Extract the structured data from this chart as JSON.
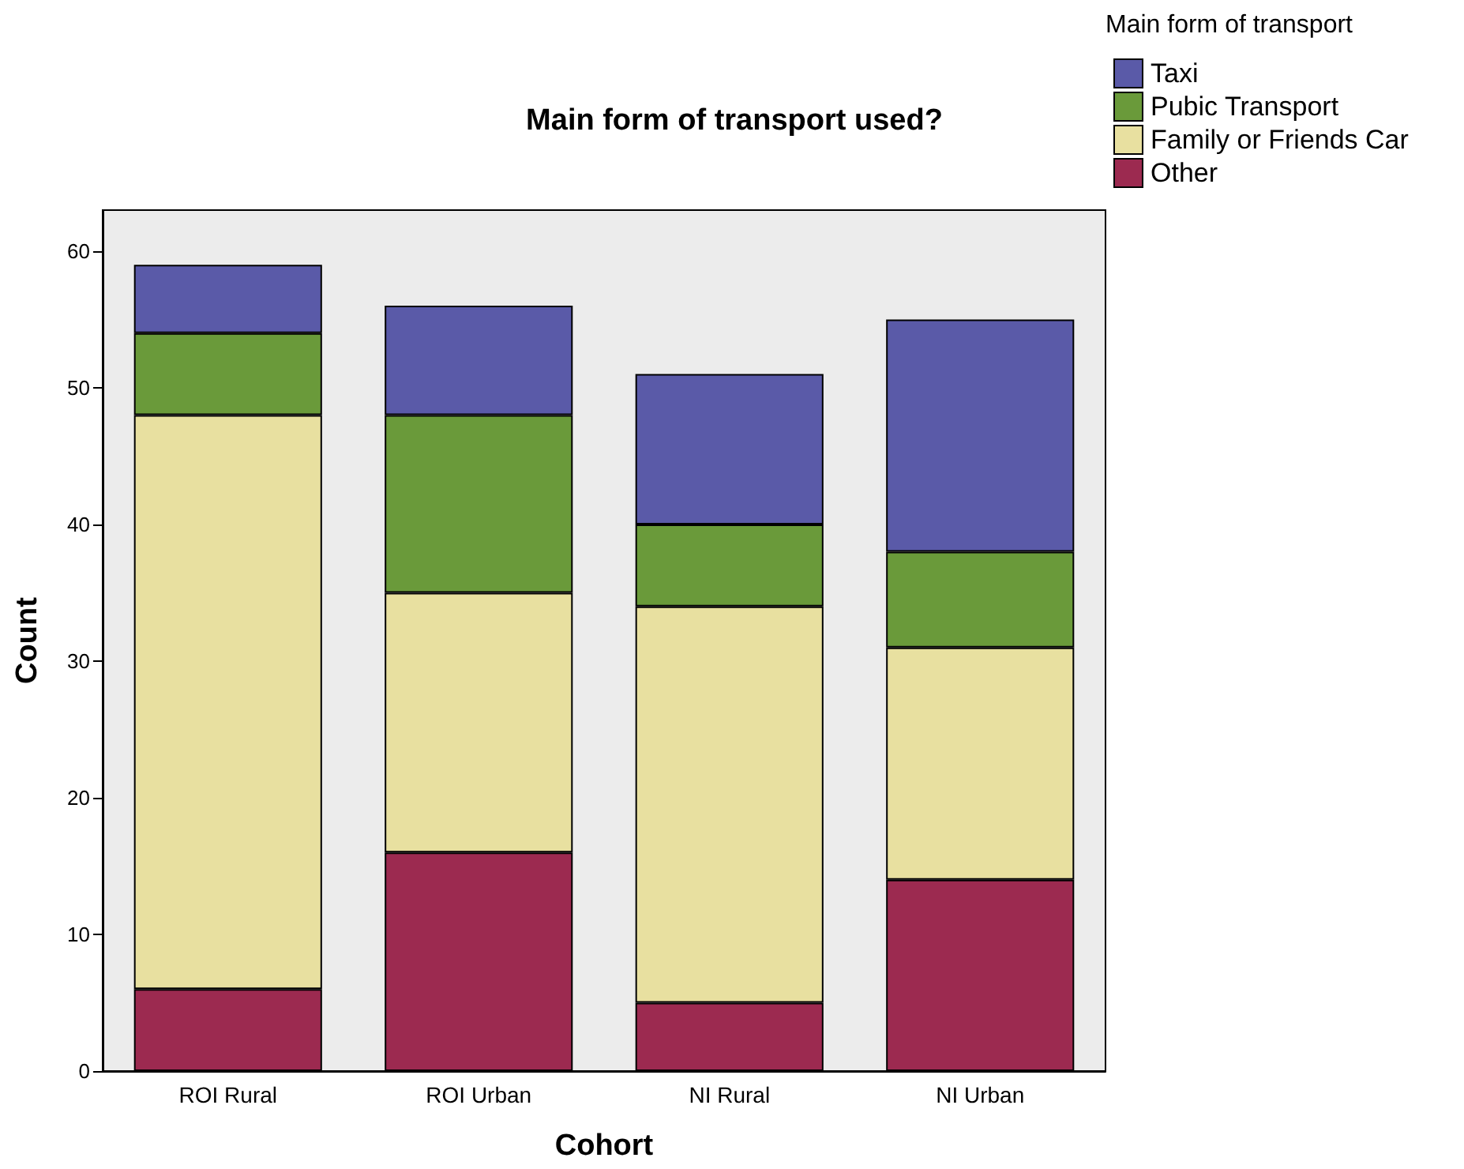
{
  "chart_data": {
    "type": "bar",
    "title": "Main form of transport used?",
    "xlabel": "Cohort",
    "ylabel": "Count",
    "legend_title": "Main form of transport",
    "categories": [
      "ROI Rural",
      "ROI Urban",
      "NI Rural",
      "NI Urban"
    ],
    "stacked": true,
    "ylim": [
      0,
      63
    ],
    "yticks": [
      0,
      10,
      20,
      30,
      40,
      50,
      60
    ],
    "grid": false,
    "legend": "top right",
    "series": [
      {
        "name": "Other",
        "color": "#9c2a50",
        "values": [
          6,
          16,
          5,
          14
        ]
      },
      {
        "name": "Family or Friends Car",
        "color": "#e8e0a0",
        "values": [
          42,
          19,
          29,
          17
        ]
      },
      {
        "name": "Pubic Transport",
        "color": "#6a9a3a",
        "values": [
          6,
          13,
          6,
          7
        ]
      },
      {
        "name": "Taxi",
        "color": "#5a5aa8",
        "values": [
          5,
          8,
          11,
          17
        ]
      }
    ]
  }
}
